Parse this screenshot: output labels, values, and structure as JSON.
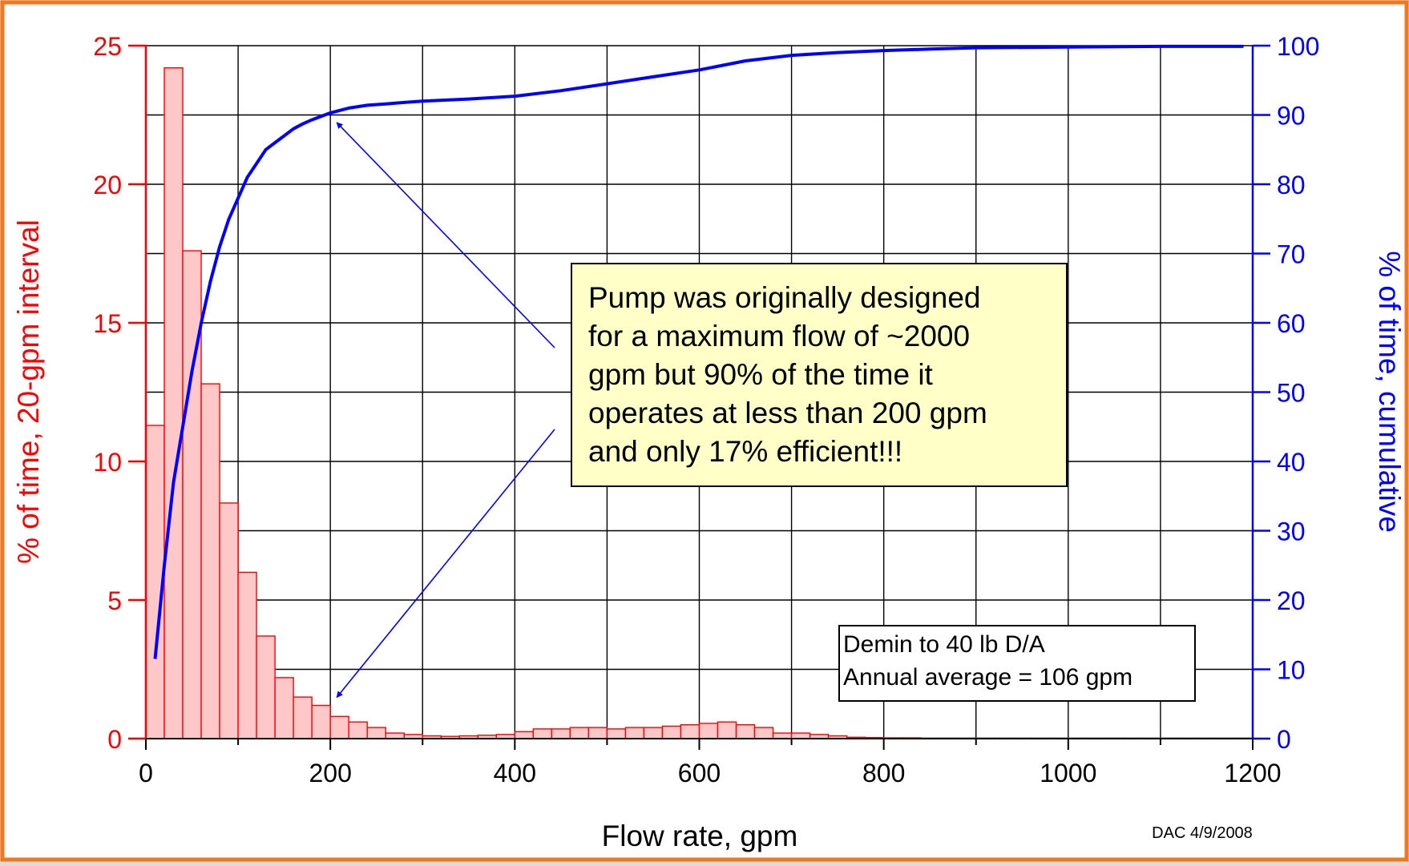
{
  "chart_data": {
    "type": "bar",
    "xlabel": "Flow rate, gpm",
    "ylabel_left": "% of time, 20-gpm interval",
    "ylabel_right": "% of time, cumulative",
    "xlim": [
      0,
      1200
    ],
    "ylim_left": [
      0,
      25
    ],
    "ylim_right": [
      0,
      100
    ],
    "x_ticks": [
      "0",
      "200",
      "400",
      "600",
      "800",
      "1000",
      "1200"
    ],
    "y_left_ticks": [
      "0",
      "5",
      "10",
      "15",
      "20",
      "25"
    ],
    "y_right_ticks": [
      "0",
      "10",
      "20",
      "30",
      "40",
      "50",
      "60",
      "70",
      "80",
      "90",
      "100"
    ],
    "grid": true,
    "bin_width": 20,
    "histogram": {
      "bin_centers": [
        10,
        30,
        50,
        70,
        90,
        110,
        130,
        150,
        170,
        190,
        210,
        230,
        250,
        270,
        290,
        310,
        330,
        350,
        370,
        390,
        410,
        430,
        450,
        470,
        490,
        510,
        530,
        550,
        570,
        590,
        610,
        630,
        650,
        670,
        690,
        710,
        730,
        750,
        770,
        790,
        810,
        830,
        850,
        870,
        890,
        910,
        930,
        950,
        970,
        990,
        1010,
        1030,
        1050,
        1070,
        1090,
        1110,
        1130,
        1150,
        1170,
        1190
      ],
      "values": [
        11.3,
        24.2,
        17.6,
        12.8,
        8.5,
        6.0,
        3.7,
        2.2,
        1.5,
        1.2,
        0.8,
        0.6,
        0.4,
        0.2,
        0.15,
        0.1,
        0.08,
        0.1,
        0.12,
        0.15,
        0.25,
        0.35,
        0.35,
        0.4,
        0.4,
        0.35,
        0.4,
        0.4,
        0.45,
        0.5,
        0.55,
        0.6,
        0.5,
        0.4,
        0.2,
        0.2,
        0.15,
        0.1,
        0.05,
        0.04,
        0.03,
        0.03,
        0.02,
        0.02,
        0.02,
        0.02,
        0.02,
        0.02,
        0.02,
        0.02,
        0.02,
        0.02,
        0.02,
        0.02,
        0.02,
        0.02,
        0.02,
        0.02,
        0.02,
        0.02
      ]
    },
    "cumulative": {
      "x": [
        10,
        20,
        30,
        40,
        50,
        60,
        70,
        80,
        90,
        100,
        110,
        120,
        130,
        140,
        150,
        160,
        170,
        180,
        190,
        200,
        220,
        240,
        260,
        280,
        300,
        350,
        400,
        450,
        500,
        550,
        600,
        650,
        700,
        750,
        800,
        850,
        900,
        1000,
        1100,
        1190
      ],
      "values": [
        11.5,
        25,
        37,
        45,
        53,
        60,
        66,
        71,
        75,
        78,
        81,
        83,
        85,
        86,
        87,
        88,
        88.7,
        89.3,
        89.8,
        90.3,
        91,
        91.4,
        91.6,
        91.8,
        92,
        92.3,
        92.7,
        93.5,
        94.5,
        95.5,
        96.5,
        97.8,
        98.6,
        99,
        99.3,
        99.5,
        99.7,
        99.8,
        99.9,
        99.9
      ]
    },
    "annotations": {
      "callout_lines": [
        "Pump was originally designed",
        "for a maximum flow of ~2000",
        "gpm but 90% of the time it",
        "operates at less than 200 gpm",
        "and only 17% efficient!!!"
      ],
      "info_lines": [
        "Demin to 40 lb D/A",
        "Annual average = 106 gpm"
      ],
      "credit": "DAC 4/9/2008"
    },
    "colors": {
      "bar_fill": "#ffc8c8",
      "bar_stroke": "#ff0000",
      "left_axis": "#ff0000",
      "right_axis": "#0000ff",
      "cumulative_line": "#0000ff",
      "frame": "#f07820",
      "callout_fill": "#ffffc8"
    }
  }
}
